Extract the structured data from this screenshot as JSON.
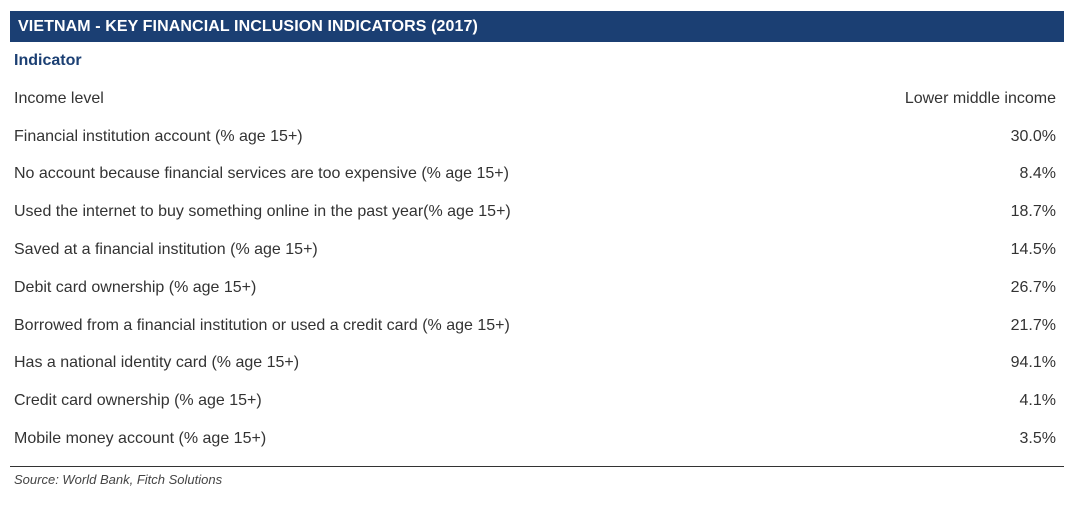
{
  "table": {
    "title": "VIETNAM - KEY FINANCIAL INCLUSION INDICATORS (2017)",
    "column_header": "Indicator",
    "rows": [
      {
        "label": "Income level",
        "value": "Lower middle income"
      },
      {
        "label": "Financial institution account (% age 15+)",
        "value": "30.0%"
      },
      {
        "label": "No account because financial services are too expensive (% age 15+)",
        "value": "8.4%"
      },
      {
        "label": "Used the internet to buy something online in the past year(% age 15+)",
        "value": "18.7%"
      },
      {
        "label": "Saved at a financial institution (% age 15+)",
        "value": "14.5%"
      },
      {
        "label": "Debit card ownership (% age 15+)",
        "value": "26.7%"
      },
      {
        "label": "Borrowed from a financial institution or used a credit card (% age 15+)",
        "value": "21.7%"
      },
      {
        "label": "Has a national identity card (% age 15+)",
        "value": "94.1%"
      },
      {
        "label": "Credit card ownership (% age 15+)",
        "value": "4.1%"
      },
      {
        "label": "Mobile money account (% age 15+)",
        "value": "3.5%"
      }
    ],
    "source": "Source: World Bank, Fitch Solutions"
  },
  "colors": {
    "title_bar": "#1b3f73",
    "header_text": "#1b3f73"
  }
}
